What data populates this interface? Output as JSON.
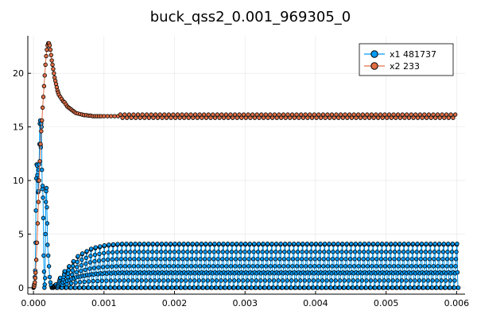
{
  "chart_data": {
    "type": "line",
    "title": "buck_qss2_0.001_969305_0",
    "xlabel": "",
    "ylabel": "",
    "xlim": [
      -8e-05,
      0.00612
    ],
    "ylim": [
      -0.6,
      23.5
    ],
    "xticks": [
      0.0,
      0.001,
      0.002,
      0.003,
      0.004,
      0.005,
      0.006
    ],
    "xtick_labels": [
      "0.000",
      "0.001",
      "0.002",
      "0.003",
      "0.004",
      "0.005",
      "0.006"
    ],
    "yticks": [
      0,
      5,
      10,
      15,
      20
    ],
    "ytick_labels": [
      "0",
      "5",
      "10",
      "15",
      "20"
    ],
    "grid": true,
    "legend_position": "top-right",
    "series": [
      {
        "name": "x1 481737",
        "color": "#009af9",
        "marker": "circle",
        "description_points": "inductor current: startup oscillation up to ~15.5 at t~0.00011, drops to 0 near 0.00028, then switching ramps 0 to ~4.1 with period ~0.0000625",
        "startup_x": [
          0.0,
          1e-05,
          2e-05,
          2.5e-05,
          3e-05,
          3.5e-05,
          4e-05,
          4.5e-05,
          5e-05,
          5.5e-05,
          6e-05,
          6.5e-05,
          7e-05,
          7.5e-05,
          8e-05,
          8.5e-05,
          9e-05,
          9.5e-05,
          0.0001,
          0.000105,
          0.00011,
          0.000115,
          0.00012,
          0.000125,
          0.00013,
          0.000135,
          0.00014,
          0.000145,
          0.00015,
          0.000155,
          0.00016,
          0.000165,
          0.00017,
          0.000175,
          0.00018,
          0.000185,
          0.00019,
          0.000195,
          0.0002,
          0.00021,
          0.00022,
          0.00023,
          0.00024,
          0.00025,
          0.00026,
          0.00027
        ],
        "startup_y": [
          0.0,
          0.3,
          1.0,
          1.6,
          4.2,
          7.2,
          10.2,
          11.5,
          11.4,
          10.5,
          10.0,
          8.9,
          9.0,
          11.0,
          11.5,
          13.4,
          15.3,
          15.6,
          13.3,
          13.1,
          15.3,
          15.0,
          11.0,
          9.2,
          9.5,
          8.4,
          6.5,
          3.0,
          1.5,
          0.0,
          0.3,
          0.9,
          5.0,
          8.0,
          9.0,
          9.3,
          7.5,
          6.0,
          4.0,
          3.0,
          2.0,
          1.0,
          0.5,
          0.2,
          0.0,
          0.0
        ],
        "switching_start": 0.00028,
        "switching_end": 0.006,
        "switching_period": 6.25e-05,
        "switching_peak_envelope": [
          [
            0.00028,
            0.3
          ],
          [
            0.0004,
            1.5
          ],
          [
            0.0006,
            3.0
          ],
          [
            0.0008,
            3.7
          ],
          [
            0.001,
            4.0
          ],
          [
            0.0012,
            4.1
          ],
          [
            0.006,
            4.1
          ]
        ]
      },
      {
        "name": "x2 233",
        "color": "#e26f46",
        "marker": "circle",
        "x": [
          0.0,
          5e-06,
          1e-05,
          1.5e-05,
          2e-05,
          2.5e-05,
          3e-05,
          4e-05,
          5e-05,
          6e-05,
          7e-05,
          8e-05,
          9e-05,
          0.0001,
          0.00011,
          0.00012,
          0.00013,
          0.00014,
          0.00015,
          0.00016,
          0.00017,
          0.00018,
          0.00019,
          0.0002,
          0.00021,
          0.00022,
          0.00023,
          0.00024,
          0.00025,
          0.00026,
          0.00027,
          0.00028,
          0.00029,
          0.0003,
          0.00031,
          0.00032,
          0.00033,
          0.00034,
          0.00035,
          0.00036,
          0.00038,
          0.0004,
          0.00042,
          0.00044,
          0.00046,
          0.00048,
          0.0005,
          0.00052,
          0.00054,
          0.00056,
          0.00058,
          0.0006,
          0.00063,
          0.00066,
          0.00069,
          0.00072,
          0.00075,
          0.00078,
          0.00081,
          0.00084,
          0.00087,
          0.0009,
          0.00093,
          0.00096,
          0.001,
          0.00105,
          0.0011,
          0.00115,
          0.0012
        ],
        "y": [
          0.0,
          0.05,
          0.1,
          0.3,
          0.5,
          0.9,
          1.4,
          2.6,
          4.2,
          6.0,
          8.0,
          10.0,
          11.8,
          13.4,
          14.6,
          15.6,
          16.8,
          17.8,
          18.8,
          19.8,
          20.8,
          21.6,
          22.2,
          22.6,
          22.8,
          22.8,
          22.6,
          22.2,
          21.7,
          21.2,
          20.8,
          20.4,
          20.0,
          19.6,
          19.3,
          19.0,
          18.7,
          18.4,
          18.2,
          18.0,
          17.8,
          17.6,
          17.4,
          17.3,
          17.1,
          16.9,
          16.8,
          16.7,
          16.6,
          16.5,
          16.4,
          16.3,
          16.25,
          16.2,
          16.15,
          16.1,
          16.1,
          16.05,
          16.05,
          16.0,
          16.0,
          16.0,
          16.0,
          16.0,
          16.0,
          16.0,
          16.0,
          16.0,
          16.0
        ],
        "steady_value": 16.0,
        "steady_ripple": 0.3,
        "steady_period": 6.25e-05
      }
    ]
  }
}
